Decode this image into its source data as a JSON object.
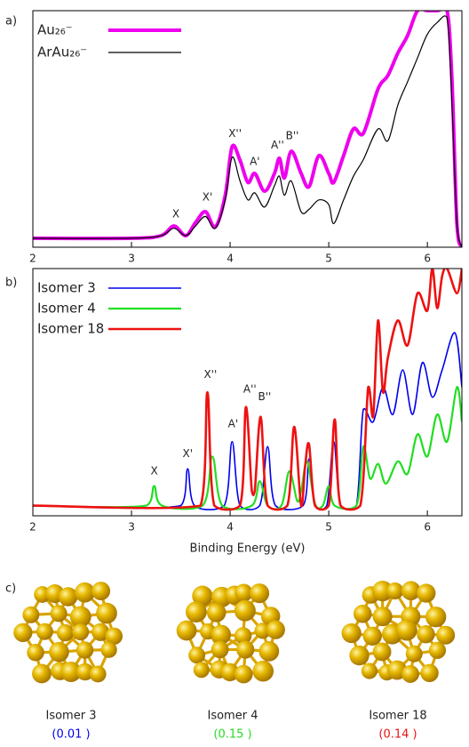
{
  "chart_data": [
    {
      "type": "line",
      "panel_label": "a)",
      "series": [
        {
          "name": "Au₂₆⁻",
          "color": "#ee00ee",
          "line_width": 4,
          "x": [
            2.0,
            3.0,
            3.3,
            3.43,
            3.55,
            3.65,
            3.75,
            3.85,
            3.95,
            4.02,
            4.1,
            4.18,
            4.25,
            4.35,
            4.45,
            4.5,
            4.55,
            4.62,
            4.72,
            4.8,
            4.9,
            5.0,
            5.05,
            5.15,
            5.25,
            5.35,
            5.5,
            5.6,
            5.7,
            5.8,
            5.9,
            6.0,
            6.1,
            6.2,
            6.25,
            6.3,
            6.35
          ],
          "values": [
            0.038,
            0.038,
            0.049,
            0.09,
            0.049,
            0.105,
            0.15,
            0.086,
            0.218,
            0.425,
            0.368,
            0.274,
            0.312,
            0.237,
            0.312,
            0.376,
            0.293,
            0.406,
            0.312,
            0.256,
            0.387,
            0.312,
            0.274,
            0.387,
            0.5,
            0.481,
            0.669,
            0.726,
            0.82,
            0.895,
            1.0,
            1.0,
            1.0,
            1.0,
            0.7,
            0.1,
            0.0
          ]
        },
        {
          "name": "ArAu₂₆⁻",
          "color": "#000000",
          "line_width": 1.2,
          "x": [
            2.0,
            3.0,
            3.3,
            3.43,
            3.55,
            3.65,
            3.75,
            3.85,
            3.95,
            4.02,
            4.1,
            4.18,
            4.25,
            4.35,
            4.45,
            4.5,
            4.55,
            4.62,
            4.72,
            4.8,
            4.9,
            5.0,
            5.05,
            5.15,
            5.25,
            5.35,
            5.5,
            5.6,
            5.7,
            5.8,
            5.9,
            6.0,
            6.1,
            6.2,
            6.25,
            6.3,
            6.35
          ],
          "values": [
            0.038,
            0.038,
            0.049,
            0.08,
            0.049,
            0.09,
            0.13,
            0.08,
            0.2,
            0.38,
            0.28,
            0.2,
            0.23,
            0.17,
            0.26,
            0.3,
            0.22,
            0.28,
            0.15,
            0.16,
            0.2,
            0.18,
            0.1,
            0.2,
            0.3,
            0.37,
            0.5,
            0.45,
            0.6,
            0.7,
            0.8,
            0.9,
            0.95,
            0.97,
            0.6,
            0.1,
            0.0
          ]
        }
      ],
      "annotations": [
        {
          "text": "X",
          "x": 3.45,
          "y": 0.14
        },
        {
          "text": "X'",
          "x": 3.77,
          "y": 0.21
        },
        {
          "text": "X''",
          "x": 4.05,
          "y": 0.48
        },
        {
          "text": "A'",
          "x": 4.25,
          "y": 0.36
        },
        {
          "text": "A''",
          "x": 4.48,
          "y": 0.43
        },
        {
          "text": "B''",
          "x": 4.63,
          "y": 0.47
        }
      ],
      "xlim": [
        2,
        6.35
      ],
      "ylim": [
        0,
        1
      ],
      "xticks": [
        2,
        3,
        4,
        5,
        6
      ],
      "legend": "top-left"
    },
    {
      "type": "line",
      "panel_label": "b)",
      "xlabel": "Binding Energy (eV)",
      "series": [
        {
          "name": "Isomer  3",
          "color": "#0000ee",
          "line_width": 1.6,
          "x": [
            2.0,
            3.5,
            3.57,
            3.64,
            3.94,
            4.02,
            4.1,
            4.3,
            4.38,
            4.46,
            4.74,
            4.8,
            4.86,
            4.98,
            5.05,
            5.12,
            5.28,
            5.35,
            5.45,
            5.55,
            5.65,
            5.75,
            5.85,
            5.95,
            6.05,
            6.15,
            6.28,
            6.35
          ],
          "values": [
            0.041,
            0.041,
            0.19,
            0.041,
            0.041,
            0.3,
            0.041,
            0.041,
            0.28,
            0.041,
            0.041,
            0.23,
            0.041,
            0.041,
            0.3,
            0.041,
            0.041,
            0.43,
            0.38,
            0.52,
            0.41,
            0.59,
            0.41,
            0.62,
            0.48,
            0.59,
            0.74,
            0.52
          ]
        },
        {
          "name": "Isomer  4",
          "color": "#22dd22",
          "line_width": 2.2,
          "x": [
            2.0,
            3.15,
            3.23,
            3.31,
            3.72,
            3.82,
            3.92,
            4.22,
            4.3,
            4.38,
            4.52,
            4.6,
            4.68,
            4.72,
            4.78,
            4.86,
            4.94,
            5.0,
            5.06,
            5.28,
            5.35,
            5.42,
            5.5,
            5.58,
            5.7,
            5.8,
            5.9,
            6.0,
            6.1,
            6.2,
            6.3,
            6.35
          ],
          "values": [
            0.041,
            0.041,
            0.12,
            0.041,
            0.041,
            0.24,
            0.041,
            0.041,
            0.14,
            0.041,
            0.041,
            0.18,
            0.06,
            0.1,
            0.22,
            0.05,
            0.041,
            0.12,
            0.041,
            0.041,
            0.28,
            0.15,
            0.21,
            0.13,
            0.22,
            0.17,
            0.33,
            0.24,
            0.41,
            0.3,
            0.52,
            0.38
          ]
        },
        {
          "name": "Isomer 18",
          "color": "#ee1111",
          "line_width": 2.6,
          "x": [
            2.0,
            3.7,
            3.77,
            3.84,
            4.1,
            4.16,
            4.22,
            4.25,
            4.31,
            4.38,
            4.58,
            4.65,
            4.72,
            4.76,
            4.8,
            4.86,
            5.0,
            5.06,
            5.12,
            5.32,
            5.4,
            5.45,
            5.5,
            5.55,
            5.6,
            5.7,
            5.8,
            5.9,
            6.0,
            6.05,
            6.1,
            6.15,
            6.2,
            6.3,
            6.35
          ],
          "values": [
            0.041,
            0.041,
            0.5,
            0.041,
            0.041,
            0.44,
            0.1,
            0.1,
            0.4,
            0.041,
            0.041,
            0.36,
            0.041,
            0.2,
            0.29,
            0.041,
            0.041,
            0.39,
            0.041,
            0.041,
            0.52,
            0.4,
            0.79,
            0.5,
            0.64,
            0.79,
            0.69,
            0.9,
            0.83,
            1.0,
            0.84,
            0.97,
            1.0,
            0.9,
            1.0
          ]
        }
      ],
      "annotations": [
        {
          "text": "X",
          "x": 3.23,
          "y": 0.18
        },
        {
          "text": "X'",
          "x": 3.57,
          "y": 0.25
        },
        {
          "text": "X''",
          "x": 3.8,
          "y": 0.57
        },
        {
          "text": "A'",
          "x": 4.03,
          "y": 0.37
        },
        {
          "text": "A''",
          "x": 4.2,
          "y": 0.51
        },
        {
          "text": "B''",
          "x": 4.35,
          "y": 0.48
        }
      ],
      "xlim": [
        2,
        6.35
      ],
      "ylim": [
        0,
        1
      ],
      "xticks": [
        2,
        3,
        4,
        5,
        6
      ],
      "legend": "top-left"
    }
  ],
  "structures_panel_label": "c)",
  "structures": [
    {
      "label": "Isomer  3",
      "energy": "(0.01 )",
      "color": "#0000ee"
    },
    {
      "label": "Isomer  4",
      "energy": "(0.15 )",
      "color": "#22dd22"
    },
    {
      "label": "Isomer 18",
      "energy": "(0.14 )",
      "color": "#ee1111"
    }
  ]
}
